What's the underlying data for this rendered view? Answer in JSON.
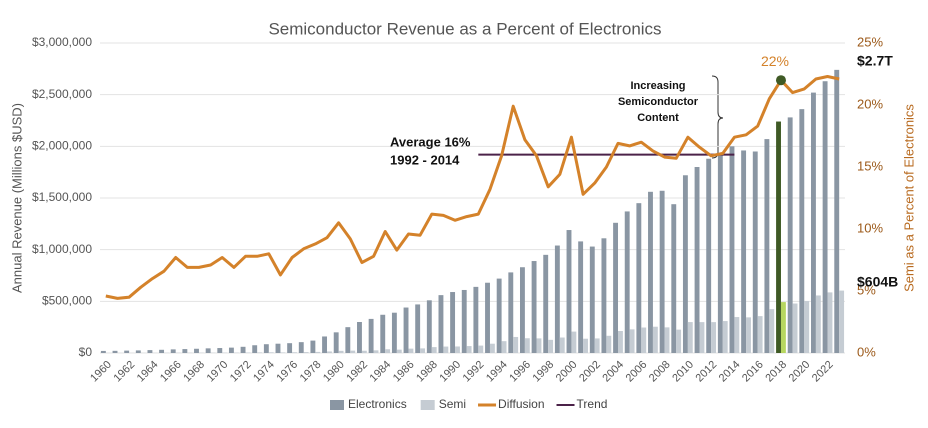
{
  "chart_data": {
    "type": "bar",
    "title": "Semiconductor Revenue as a Percent of Electronics",
    "y_label": "Annual Revenue (Millions $USD)",
    "y2_label": "Semi as a Percent of Electronics",
    "categories": [
      "1960",
      null,
      "1962",
      null,
      "1964",
      null,
      "1966",
      null,
      "1968",
      null,
      "1970",
      null,
      "1972",
      null,
      "1974",
      null,
      "1976",
      null,
      "1978",
      null,
      "1980",
      null,
      "1982",
      null,
      "1984",
      null,
      "1986",
      null,
      "1988",
      null,
      "1990",
      null,
      "1992",
      null,
      "1994",
      null,
      "1996",
      null,
      "1998",
      null,
      "2000",
      null,
      "2002",
      null,
      "2004",
      null,
      "2006",
      null,
      "2008",
      null,
      "2010",
      null,
      "2012",
      null,
      "2014",
      null,
      "2016",
      null,
      "2018",
      null,
      "2020",
      null,
      "2022",
      null
    ],
    "ylim": [
      0,
      3000000
    ],
    "yticks": [
      {
        "value": 0,
        "label": "$0"
      },
      {
        "value": 500000,
        "label": "$500,000"
      },
      {
        "value": 1000000,
        "label": "$1,000,000"
      },
      {
        "value": 1500000,
        "label": "$1,500,000"
      },
      {
        "value": 2000000,
        "label": "$2,000,000"
      },
      {
        "value": 2500000,
        "label": "$2,500,000"
      },
      {
        "value": 3000000,
        "label": "$3,000,000"
      }
    ],
    "y2lim": [
      0,
      25
    ],
    "y2ticks": [
      {
        "value": 0,
        "label": "0%"
      },
      {
        "value": 5,
        "label": "5%"
      },
      {
        "value": 10,
        "label": "10%"
      },
      {
        "value": 15,
        "label": "15%"
      },
      {
        "value": 20,
        "label": "20%"
      },
      {
        "value": 25,
        "label": "25%"
      }
    ],
    "grid": true,
    "highlight_category": "2018",
    "series": [
      {
        "name": "Electronics",
        "kind": "bar",
        "color": "#8a96a3",
        "highlight_color": "#3f5a25",
        "values": [
          20000,
          21000,
          23000,
          25000,
          28000,
          31000,
          35000,
          38000,
          41000,
          45000,
          48000,
          52000,
          60000,
          75000,
          85000,
          90000,
          95000,
          105000,
          120000,
          160000,
          200000,
          250000,
          300000,
          330000,
          370000,
          390000,
          440000,
          470000,
          510000,
          560000,
          590000,
          610000,
          640000,
          680000,
          720000,
          780000,
          830000,
          890000,
          950000,
          1040000,
          1190000,
          1080000,
          1030000,
          1110000,
          1260000,
          1370000,
          1450000,
          1560000,
          1570000,
          1440000,
          1720000,
          1800000,
          1880000,
          1920000,
          2000000,
          1960000,
          1950000,
          2070000,
          2240000,
          2280000,
          2360000,
          2520000,
          2630000,
          2740000
        ],
        "value_labels": [
          null,
          null,
          null,
          null,
          null,
          null,
          null,
          null,
          null,
          null,
          null,
          null,
          null,
          null,
          null,
          null,
          null,
          null,
          null,
          null,
          null,
          null,
          null,
          null,
          null,
          null,
          null,
          null,
          null,
          null,
          null,
          null,
          null,
          null,
          null,
          null,
          null,
          null,
          null,
          null,
          null,
          null,
          null,
          null,
          null,
          null,
          null,
          null,
          null,
          null,
          null,
          null,
          null,
          null,
          null,
          null,
          null,
          null,
          null,
          null,
          null,
          null,
          null,
          "$2.7T"
        ]
      },
      {
        "name": "Semi",
        "kind": "bar",
        "color": "#c5ccd3",
        "highlight_color": "#b7d660",
        "values": [
          900,
          900,
          1000,
          1300,
          1700,
          2000,
          2700,
          2600,
          2800,
          3200,
          3700,
          3600,
          4700,
          5900,
          6800,
          5700,
          7300,
          8800,
          10600,
          14900,
          21000,
          23000,
          21900,
          25700,
          36300,
          32400,
          42200,
          44700,
          57100,
          62200,
          63100,
          67100,
          71700,
          89800,
          114500,
          155200,
          142800,
          141500,
          127300,
          149800,
          207100,
          138200,
          141100,
          166500,
          212900,
          228800,
          246500,
          254300,
          248100,
          226100,
          299300,
          298800,
          298900,
          309100,
          348000,
          345000,
          356900,
          424400,
          492800,
          478800,
          502700,
          556900,
          586500,
          604000
        ],
        "value_labels": [
          null,
          null,
          null,
          null,
          null,
          null,
          null,
          null,
          null,
          null,
          null,
          null,
          null,
          null,
          null,
          null,
          null,
          null,
          null,
          null,
          null,
          null,
          null,
          null,
          null,
          null,
          null,
          null,
          null,
          null,
          null,
          null,
          null,
          null,
          null,
          null,
          null,
          null,
          null,
          null,
          null,
          null,
          null,
          null,
          null,
          null,
          null,
          null,
          null,
          null,
          null,
          null,
          null,
          null,
          null,
          null,
          null,
          null,
          null,
          null,
          null,
          null,
          null,
          "$604B"
        ]
      },
      {
        "name": "Diffusion",
        "kind": "line",
        "axis": "y2",
        "color": "#d4822a",
        "marker_color": "#3f5a25",
        "values": [
          4.6,
          4.4,
          4.5,
          5.3,
          6.0,
          6.6,
          7.7,
          6.9,
          6.9,
          7.1,
          7.7,
          6.9,
          7.8,
          7.8,
          8.0,
          6.3,
          7.7,
          8.4,
          8.8,
          9.3,
          10.5,
          9.2,
          7.3,
          7.8,
          9.8,
          8.3,
          9.6,
          9.5,
          11.2,
          11.1,
          10.7,
          11.0,
          11.2,
          13.2,
          15.9,
          19.9,
          17.2,
          15.9,
          13.4,
          14.4,
          17.4,
          12.8,
          13.7,
          15.0,
          16.9,
          16.7,
          17.0,
          16.3,
          15.8,
          15.7,
          17.4,
          16.6,
          15.9,
          16.1,
          17.4,
          17.6,
          18.3,
          20.5,
          22.0,
          21.0,
          21.3,
          22.1,
          22.3,
          22.1
        ],
        "value_labels": [
          null,
          null,
          null,
          null,
          null,
          null,
          null,
          null,
          null,
          null,
          null,
          null,
          null,
          null,
          null,
          null,
          null,
          null,
          null,
          null,
          null,
          null,
          null,
          null,
          null,
          null,
          null,
          null,
          null,
          null,
          null,
          null,
          null,
          null,
          null,
          null,
          null,
          null,
          null,
          null,
          null,
          null,
          null,
          null,
          null,
          null,
          null,
          null,
          null,
          null,
          null,
          null,
          null,
          null,
          null,
          null,
          null,
          null,
          "22%",
          null,
          null,
          null,
          null,
          null
        ]
      }
    ],
    "trend": {
      "name": "Trend",
      "color": "#4b2249",
      "from": "1992",
      "to": "2014",
      "value": 16
    },
    "average_note": [
      "Average 16%",
      "1992 - 2014"
    ],
    "content_note": [
      "Increasing",
      "Semiconductor",
      "Content"
    ]
  }
}
